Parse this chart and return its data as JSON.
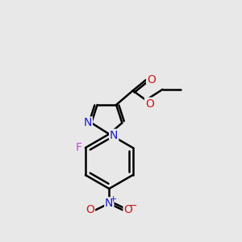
{
  "background_color": "#e8e8e8",
  "bond_color": "#000000",
  "bond_width": 1.8,
  "atom_colors": {
    "C": "#000000",
    "N": "#1a1acc",
    "O": "#cc1a1a",
    "F": "#cc44cc"
  },
  "font_size": 10,
  "figsize": [
    3.0,
    3.0
  ],
  "dpi": 100,
  "xlim": [
    0,
    10
  ],
  "ylim": [
    0,
    10
  ]
}
